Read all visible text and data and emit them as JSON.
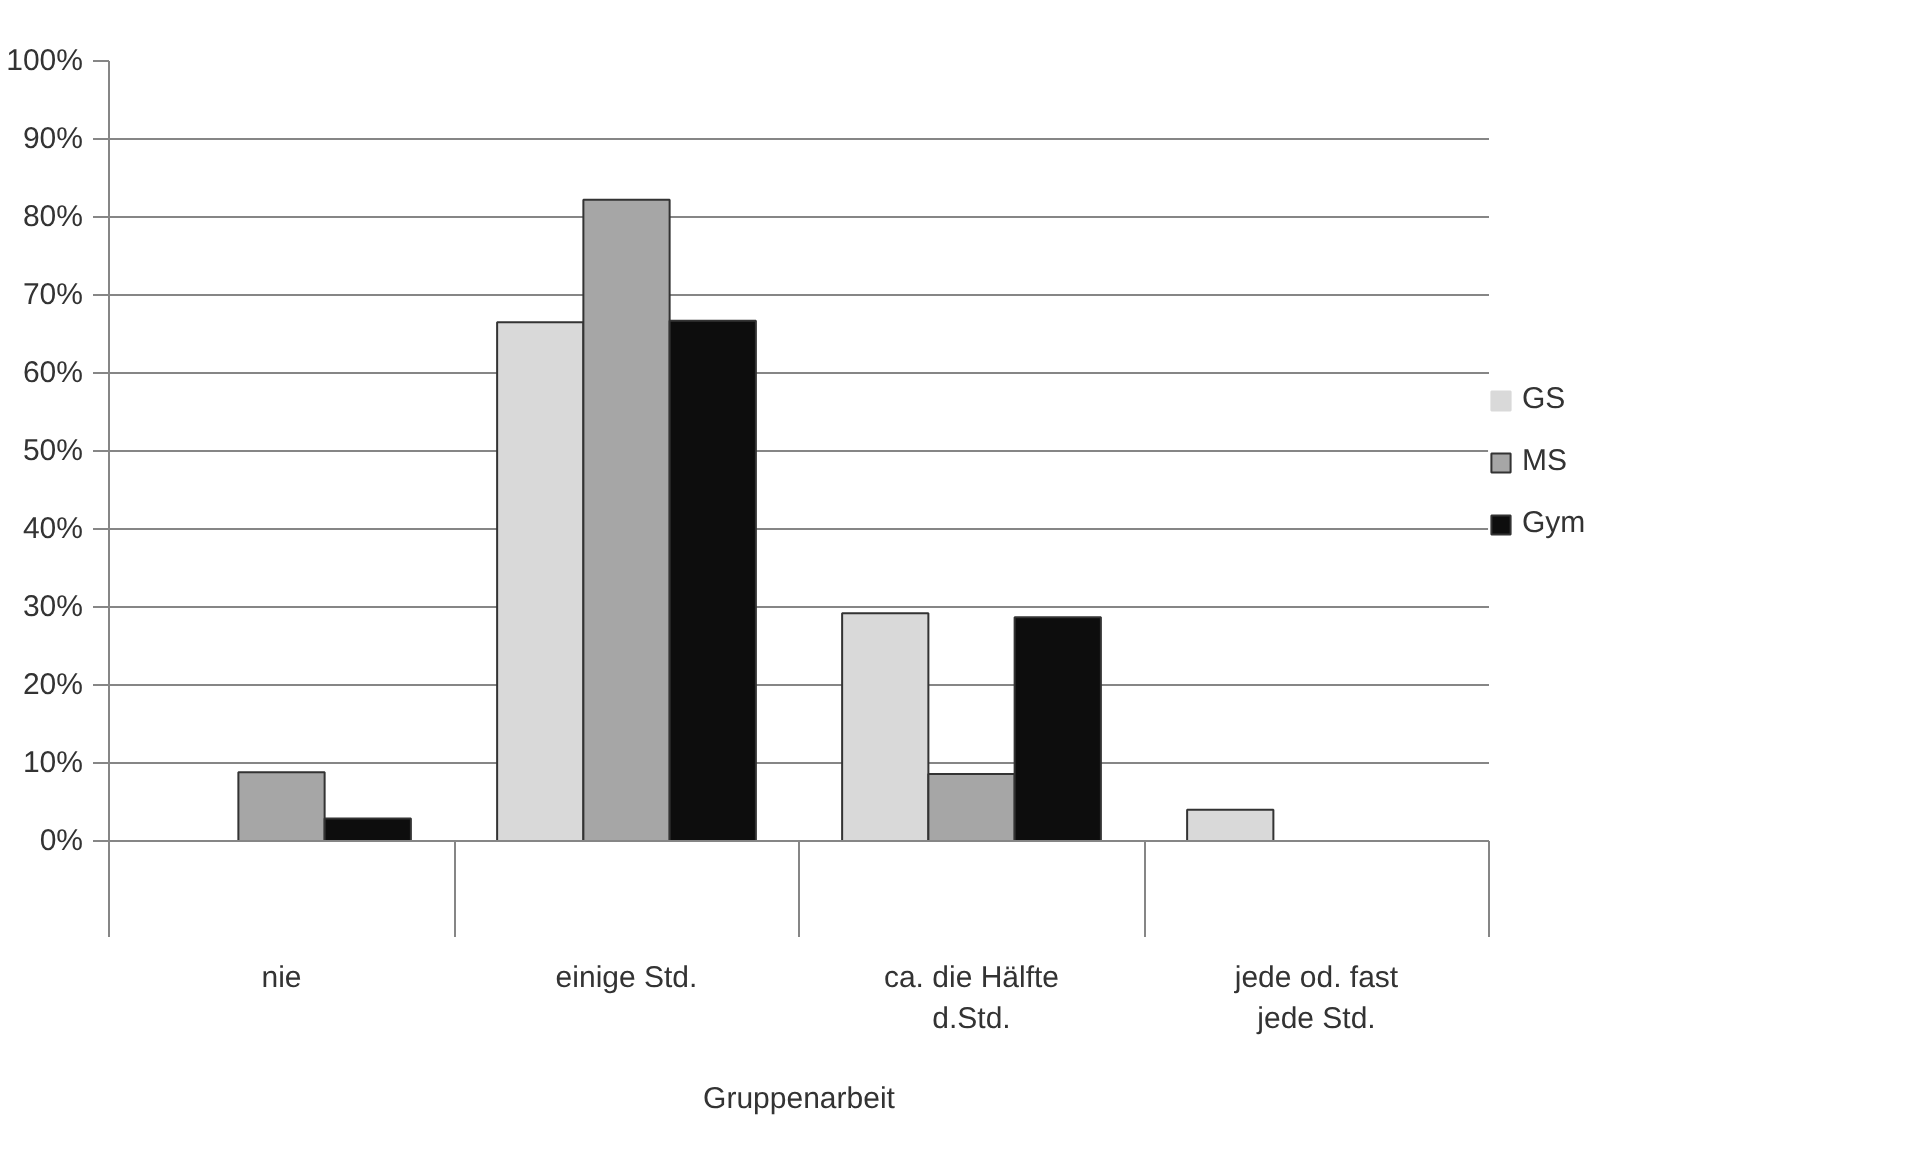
{
  "chart_data": {
    "type": "bar",
    "xlabel": "Gruppenarbeit",
    "categories": [
      "nie",
      "einige Std.",
      "ca. die Hälfte d.Std.",
      "jede od. fast jede Std."
    ],
    "series": [
      {
        "name": "GS",
        "color": "#d9d9d9",
        "values": [
          0,
          66.5,
          29.2,
          4.0
        ]
      },
      {
        "name": "MS",
        "color": "#a6a6a6",
        "values": [
          8.8,
          82.2,
          8.6,
          0
        ]
      },
      {
        "name": "Gym",
        "color": "#0d0d0d",
        "values": [
          2.9,
          66.7,
          28.7,
          0
        ]
      }
    ],
    "ylim": [
      0,
      100
    ],
    "yticks": [
      {
        "value": 0,
        "label": "0%"
      },
      {
        "value": 10,
        "label": "10%"
      },
      {
        "value": 20,
        "label": "20%"
      },
      {
        "value": 30,
        "label": "30%"
      },
      {
        "value": 40,
        "label": "40%"
      },
      {
        "value": 50,
        "label": "50%"
      },
      {
        "value": 60,
        "label": "60%"
      },
      {
        "value": 70,
        "label": "70%"
      },
      {
        "value": 80,
        "label": "80%"
      },
      {
        "value": 90,
        "label": "90%"
      },
      {
        "value": 100,
        "label": "100%"
      }
    ],
    "grid": "y",
    "legend": "right"
  }
}
